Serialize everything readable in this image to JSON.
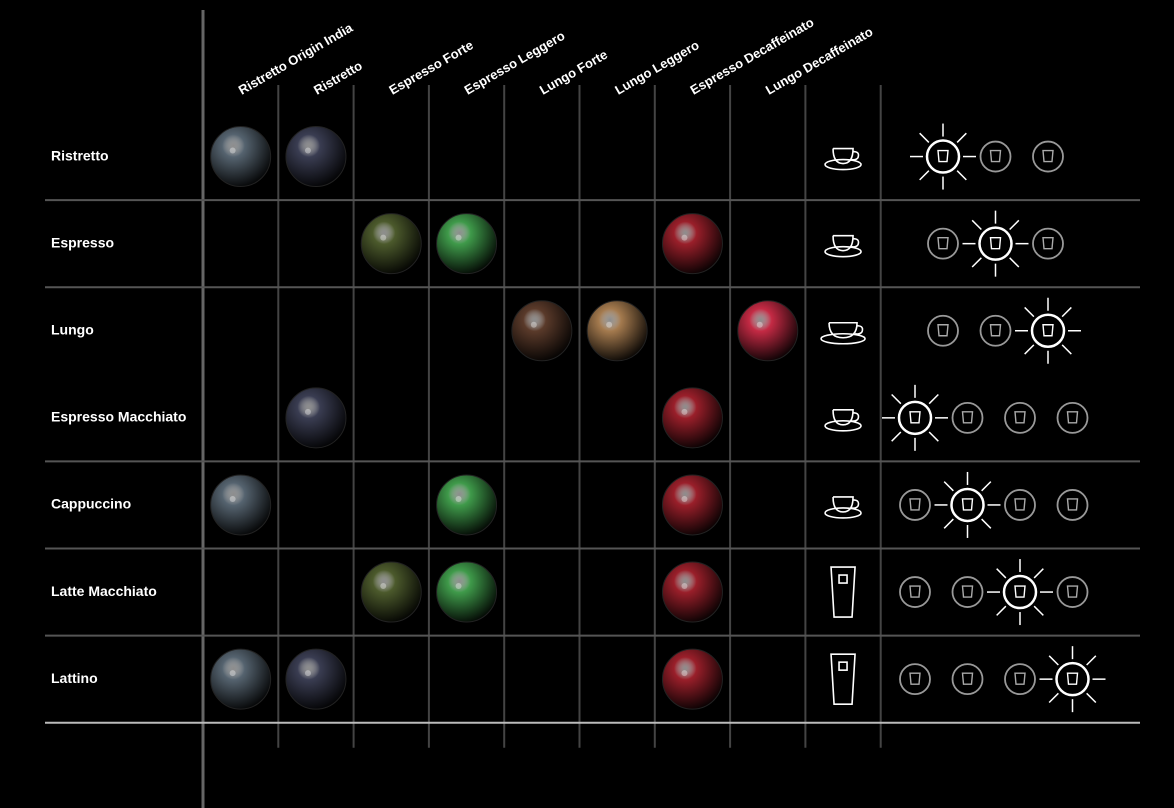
{
  "header": {
    "columns": [
      {
        "label": "Ristretto Origin India",
        "color": "#55636f"
      },
      {
        "label": "Ristretto",
        "color": "#3a3d52"
      },
      {
        "label": "Espresso Forte",
        "color": "#4c5a2c"
      },
      {
        "label": "Espresso Leggero",
        "color": "#3f9a4a"
      },
      {
        "label": "Lungo Forte",
        "color": "#5a3a2a"
      },
      {
        "label": "Lungo Leggero",
        "color": "#a47a4e"
      },
      {
        "label": "Espresso Decaffeinato",
        "color": "#9a1f2a"
      },
      {
        "label": "Lungo Decaffeinato",
        "color": "#c42a44"
      }
    ]
  },
  "table": {
    "rows": [
      {
        "label": "Ristretto",
        "capsules": [
          true,
          true,
          false,
          false,
          false,
          false,
          false,
          false
        ],
        "cup": "cup",
        "buttons": [
          true,
          false,
          false
        ],
        "divider": true
      },
      {
        "label": "Espresso",
        "capsules": [
          false,
          false,
          true,
          true,
          false,
          false,
          true,
          false
        ],
        "cup": "cup",
        "buttons": [
          false,
          true,
          false
        ],
        "divider": false
      },
      {
        "label": "Lungo",
        "capsules": [
          false,
          false,
          false,
          false,
          true,
          true,
          false,
          true
        ],
        "cup": "cup",
        "buttons": [
          false,
          false,
          true
        ],
        "divider": false
      },
      {
        "label": "Espresso Macchiato",
        "capsules": [
          false,
          true,
          false,
          false,
          false,
          false,
          true,
          false
        ],
        "cup": "cup",
        "buttons": [
          true,
          false,
          false,
          false
        ],
        "divider": true
      },
      {
        "label": "Cappuccino",
        "capsules": [
          true,
          false,
          false,
          true,
          false,
          false,
          true,
          false
        ],
        "cup": "cup",
        "buttons": [
          false,
          true,
          false,
          false
        ],
        "divider": false
      },
      {
        "label": "Latte Macchiato",
        "capsules": [
          false,
          false,
          true,
          true,
          false,
          false,
          true,
          false
        ],
        "cup": "glass",
        "buttons": [
          false,
          false,
          true,
          false
        ],
        "divider": false
      },
      {
        "label": "Lattino",
        "capsules": [
          true,
          true,
          false,
          false,
          false,
          false,
          true,
          false
        ],
        "cup": "glass",
        "buttons": [
          false,
          false,
          false,
          true
        ],
        "divider": false
      }
    ]
  }
}
